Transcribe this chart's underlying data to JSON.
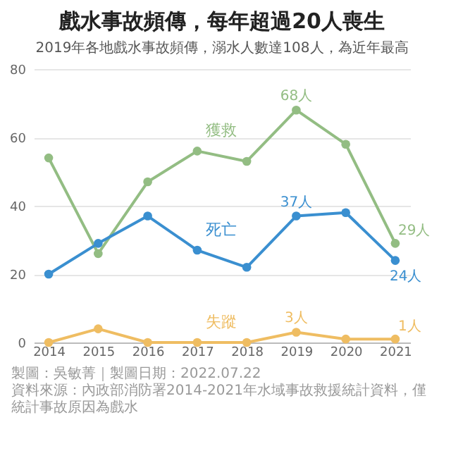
{
  "chart_data": {
    "type": "line",
    "title": "戲水事故頻傳，每年超過20人喪生",
    "subtitle": "2019年各地戲水事故頻傳，溺水人數達108人，為近年最高",
    "categories": [
      "2014",
      "2015",
      "2016",
      "2017",
      "2018",
      "2019",
      "2020",
      "2021"
    ],
    "series": [
      {
        "name": "獲救",
        "color": "#93bd83",
        "values": [
          54,
          26,
          47,
          56,
          53,
          68,
          58,
          29
        ],
        "value_labels": [
          null,
          null,
          null,
          null,
          null,
          "68人",
          null,
          "29人"
        ]
      },
      {
        "name": "死亡",
        "color": "#3a8fd0",
        "values": [
          20,
          29,
          37,
          27,
          22,
          37,
          38,
          24
        ],
        "value_labels": [
          null,
          null,
          null,
          null,
          null,
          "37人",
          null,
          "24人"
        ]
      },
      {
        "name": "失蹤",
        "color": "#efbd62",
        "values": [
          0,
          4,
          0,
          0,
          0,
          3,
          1,
          1
        ],
        "value_labels": [
          null,
          null,
          null,
          null,
          null,
          "3人",
          null,
          "1人"
        ]
      }
    ],
    "ylim": [
      0,
      80
    ],
    "yticks": [
      0,
      20,
      40,
      60,
      80
    ],
    "grid": "y",
    "marker": "circle",
    "legend": false,
    "annotations": [
      "製圖：吳敏菁｜製圖日期：2022.07.22",
      "資料來源：內政部消防署2014-2021年水域事故救援統計資料，僅統計事故原因為戲水"
    ]
  }
}
